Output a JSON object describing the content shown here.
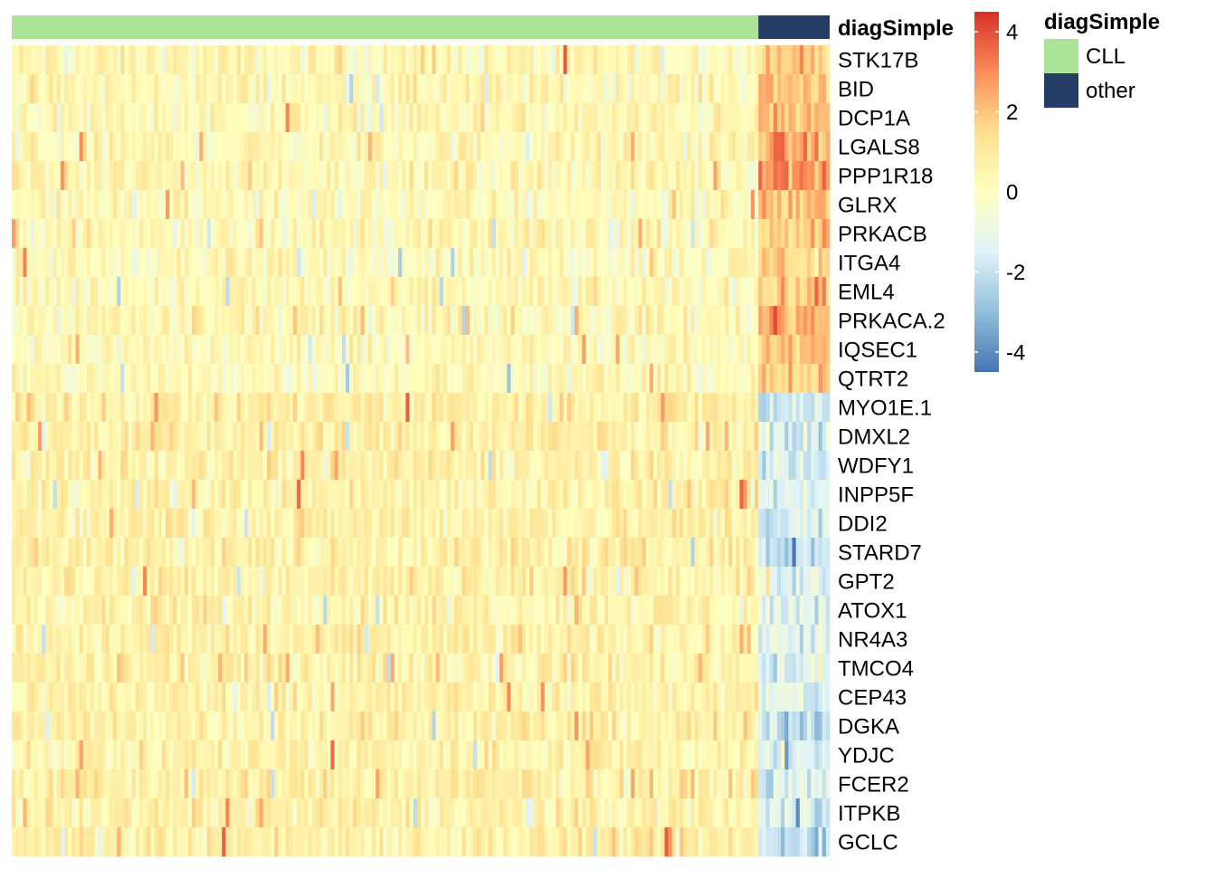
{
  "chart_data": {
    "type": "heatmap",
    "annotation": {
      "name": "diagSimple",
      "groups": [
        {
          "label": "CLL",
          "count": 199,
          "color": "#abe496"
        },
        {
          "label": "other",
          "count": 19,
          "color": "#253d66"
        }
      ]
    },
    "rows": [
      "STK17B",
      "BID",
      "DCP1A",
      "LGALS8",
      "PPP1R18",
      "GLRX",
      "PRKACB",
      "ITGA4",
      "EML4",
      "PRKACA.2",
      "IQSEC1",
      "QTRT2",
      "MYO1E.1",
      "DMXL2",
      "WDFY1",
      "INPP5F",
      "DDI2",
      "STARD7",
      "GPT2",
      "ATOX1",
      "NR4A3",
      "TMCO4",
      "CEP43",
      "DGKA",
      "YDJC",
      "FCER2",
      "ITPKB",
      "GCLC"
    ],
    "row_means": {
      "CLL": [
        0.3,
        0.3,
        0.3,
        0.3,
        0.4,
        0.2,
        0.3,
        0.2,
        0.2,
        0.3,
        0.2,
        0.2,
        0.8,
        0.7,
        0.6,
        0.6,
        0.7,
        0.7,
        0.7,
        0.6,
        0.6,
        0.6,
        0.6,
        0.7,
        0.6,
        0.7,
        0.6,
        0.7
      ],
      "other": [
        2.0,
        2.0,
        2.0,
        2.6,
        3.0,
        2.0,
        2.0,
        1.8,
        1.8,
        2.4,
        2.0,
        1.6,
        -1.6,
        -1.6,
        -1.5,
        -1.5,
        -1.6,
        -2.0,
        -1.5,
        -1.3,
        -1.2,
        -1.5,
        -1.3,
        -2.2,
        -1.6,
        -1.5,
        -1.4,
        -2.0
      ]
    },
    "value_range": [
      -4.5,
      4.5
    ],
    "color_scale": {
      "ticks": [
        4,
        2,
        0,
        -2,
        -4
      ],
      "colors": [
        "#4575b4",
        "#91bfdb",
        "#e0f3f8",
        "#ffffbf",
        "#fee090",
        "#fc8d59",
        "#d73027"
      ]
    },
    "legend_position": "right"
  }
}
